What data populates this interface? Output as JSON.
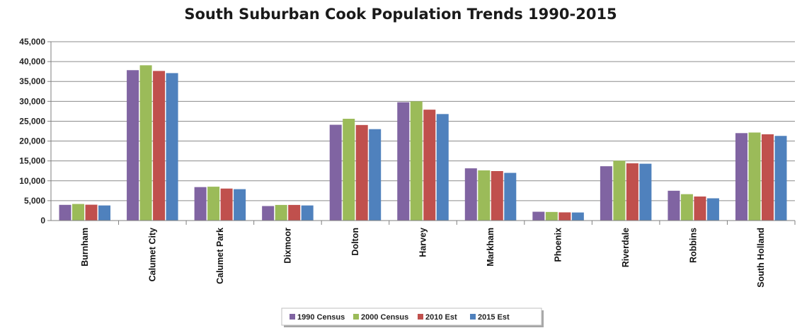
{
  "chart_data": {
    "type": "bar",
    "title": "South Suburban Cook Population Trends 1990-2015",
    "xlabel": "",
    "ylabel": "",
    "ylim": [
      0,
      45000
    ],
    "yticks": [
      "0",
      "5,000",
      "10,000",
      "15,000",
      "20,000",
      "25,000",
      "30,000",
      "35,000",
      "40,000",
      "45,000"
    ],
    "grid": true,
    "legend_position": "bottom",
    "categories": [
      "Burnham",
      "Calumet City",
      "Calumet Park",
      "Dixmoor",
      "Dolton",
      "Harvey",
      "Markham",
      "Phoenix",
      "Riverdale",
      "Robbins",
      "South Holland"
    ],
    "series": [
      {
        "name": "1990 Census",
        "color": "#8064a2",
        "values": [
          3950,
          37840,
          8420,
          3650,
          24100,
          29770,
          13140,
          2220,
          13670,
          7500,
          22000
        ]
      },
      {
        "name": "2000 Census",
        "color": "#9bbb59",
        "values": [
          4170,
          39070,
          8520,
          3930,
          25610,
          30000,
          12620,
          2160,
          15060,
          6640,
          22150
        ]
      },
      {
        "name": "2010 Est",
        "color": "#c0504d",
        "values": [
          3990,
          37640,
          8050,
          3930,
          24040,
          27900,
          12450,
          2060,
          14400,
          6050,
          21700
        ]
      },
      {
        "name": "2015 Est",
        "color": "#4f81bd",
        "values": [
          3800,
          37100,
          7900,
          3800,
          23000,
          26800,
          12000,
          2030,
          14300,
          5600,
          21300
        ]
      }
    ]
  }
}
